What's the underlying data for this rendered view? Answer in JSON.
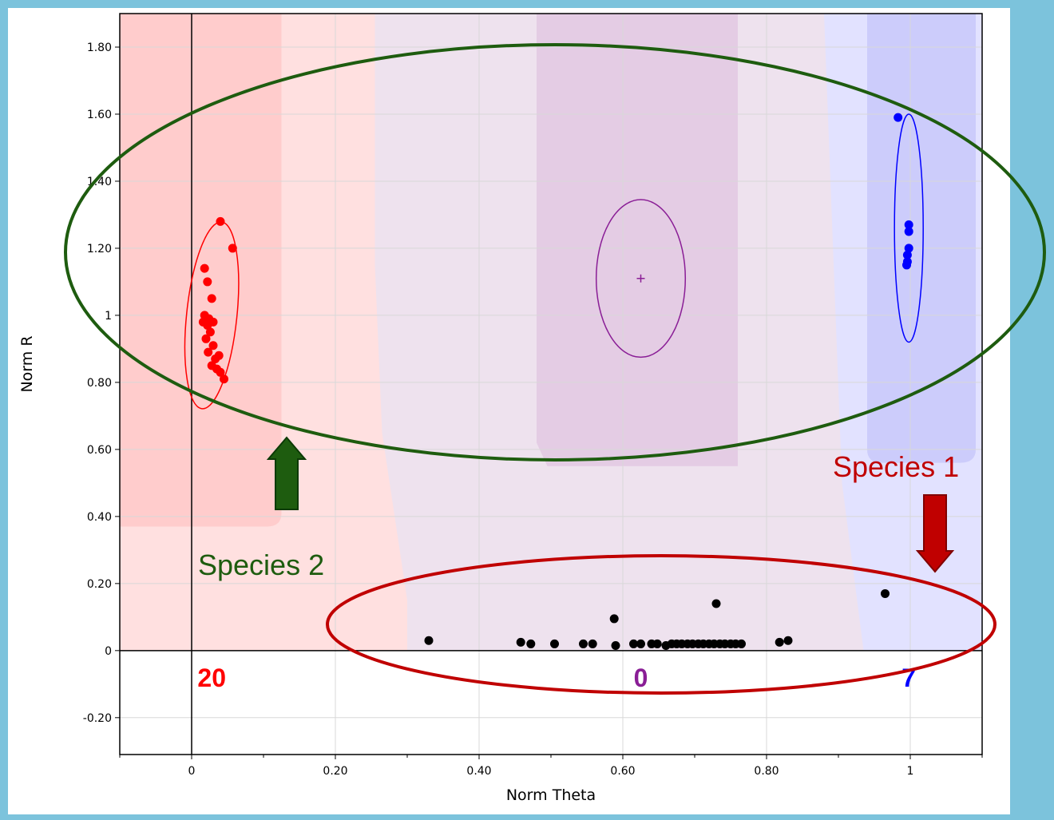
{
  "chart_data": {
    "type": "scatter",
    "xlabel": "Norm Theta",
    "ylabel": "Norm R",
    "xlim": [
      -0.1,
      1.1
    ],
    "ylim": [
      -0.31,
      1.9
    ],
    "x_ticks": [
      "0",
      "0.20",
      "0.40",
      "0.60",
      "0.80",
      "1"
    ],
    "x_tick_values": [
      0,
      0.2,
      0.4,
      0.6,
      0.8,
      1.0
    ],
    "y_ticks": [
      "-0.20",
      "0",
      "0.20",
      "0.40",
      "0.60",
      "0.80",
      "1",
      "1.20",
      "1.40",
      "1.60",
      "1.80"
    ],
    "y_tick_values": [
      -0.2,
      0,
      0.2,
      0.4,
      0.6,
      0.8,
      1.0,
      1.2,
      1.4,
      1.6,
      1.8
    ],
    "grid": true,
    "colors": {
      "red_cluster": "#ff0000",
      "purple_cluster": "#8a1e96",
      "blue_cluster": "#0000ff",
      "unclassified": "#000000",
      "species_2": "#1e5c0f",
      "species_1": "#c00000"
    },
    "series": [
      {
        "color": "#ff0000",
        "count_label": "20",
        "points": [
          [
            0.04,
            1.28
          ],
          [
            0.057,
            1.2
          ],
          [
            0.018,
            1.14
          ],
          [
            0.022,
            1.1
          ],
          [
            0.028,
            1.05
          ],
          [
            0.018,
            1.0
          ],
          [
            0.024,
            0.99
          ],
          [
            0.03,
            0.98
          ],
          [
            0.022,
            0.97
          ],
          [
            0.026,
            0.95
          ],
          [
            0.02,
            0.93
          ],
          [
            0.023,
            0.89
          ],
          [
            0.033,
            0.87
          ],
          [
            0.028,
            0.85
          ],
          [
            0.035,
            0.84
          ],
          [
            0.04,
            0.83
          ],
          [
            0.045,
            0.81
          ],
          [
            0.038,
            0.88
          ],
          [
            0.016,
            0.98
          ],
          [
            0.03,
            0.91
          ]
        ],
        "ellipse": {
          "cx": 0.028,
          "cy": 1.0,
          "rx": 0.035,
          "ry": 0.28
        }
      },
      {
        "color": "#8a1e96",
        "count_label": "0",
        "points": [],
        "centroid": [
          0.625,
          1.11
        ],
        "ellipse": {
          "cx": 0.625,
          "cy": 1.11,
          "rx": 0.062,
          "ry": 0.235
        }
      },
      {
        "color": "#0000ff",
        "count_label": "7",
        "points": [
          [
            0.983,
            1.59
          ],
          [
            0.998,
            1.27
          ],
          [
            0.998,
            1.25
          ],
          [
            0.998,
            1.2
          ],
          [
            0.996,
            1.18
          ],
          [
            0.996,
            1.16
          ],
          [
            0.995,
            1.15
          ]
        ],
        "ellipse": {
          "cx": 0.998,
          "cy": 1.26,
          "rx": 0.02,
          "ry": 0.34
        }
      },
      {
        "color": "#000000",
        "count_label": "",
        "points": [
          [
            0.33,
            0.03
          ],
          [
            0.458,
            0.025
          ],
          [
            0.472,
            0.02
          ],
          [
            0.505,
            0.02
          ],
          [
            0.545,
            0.02
          ],
          [
            0.558,
            0.02
          ],
          [
            0.588,
            0.095
          ],
          [
            0.59,
            0.015
          ],
          [
            0.615,
            0.02
          ],
          [
            0.625,
            0.02
          ],
          [
            0.64,
            0.02
          ],
          [
            0.648,
            0.02
          ],
          [
            0.66,
            0.015
          ],
          [
            0.668,
            0.02
          ],
          [
            0.675,
            0.02
          ],
          [
            0.682,
            0.02
          ],
          [
            0.69,
            0.02
          ],
          [
            0.697,
            0.02
          ],
          [
            0.705,
            0.02
          ],
          [
            0.712,
            0.02
          ],
          [
            0.72,
            0.02
          ],
          [
            0.727,
            0.02
          ],
          [
            0.735,
            0.02
          ],
          [
            0.742,
            0.02
          ],
          [
            0.75,
            0.02
          ],
          [
            0.757,
            0.02
          ],
          [
            0.765,
            0.02
          ],
          [
            0.73,
            0.14
          ],
          [
            0.818,
            0.025
          ],
          [
            0.83,
            0.03
          ],
          [
            0.965,
            0.17
          ]
        ]
      }
    ],
    "annotations": {
      "species_2_label": "Species 2",
      "species_1_label": "Species 1"
    }
  }
}
